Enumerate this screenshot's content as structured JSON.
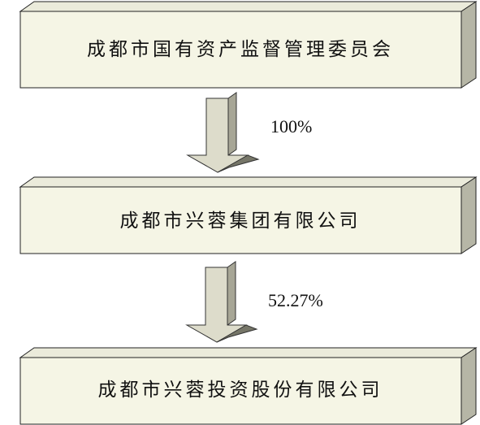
{
  "entities": [
    {
      "name": "成都市国有资产监督管理委员会"
    },
    {
      "name": "成都市兴蓉集团有限公司"
    },
    {
      "name": "成都市兴蓉投资股份有限公司"
    }
  ],
  "links": [
    {
      "from": "成都市国有资产监督管理委员会",
      "to": "成都市兴蓉集团有限公司",
      "share": "100%"
    },
    {
      "from": "成都市兴蓉集团有限公司",
      "to": "成都市兴蓉投资股份有限公司",
      "share": "52.27%"
    }
  ]
}
